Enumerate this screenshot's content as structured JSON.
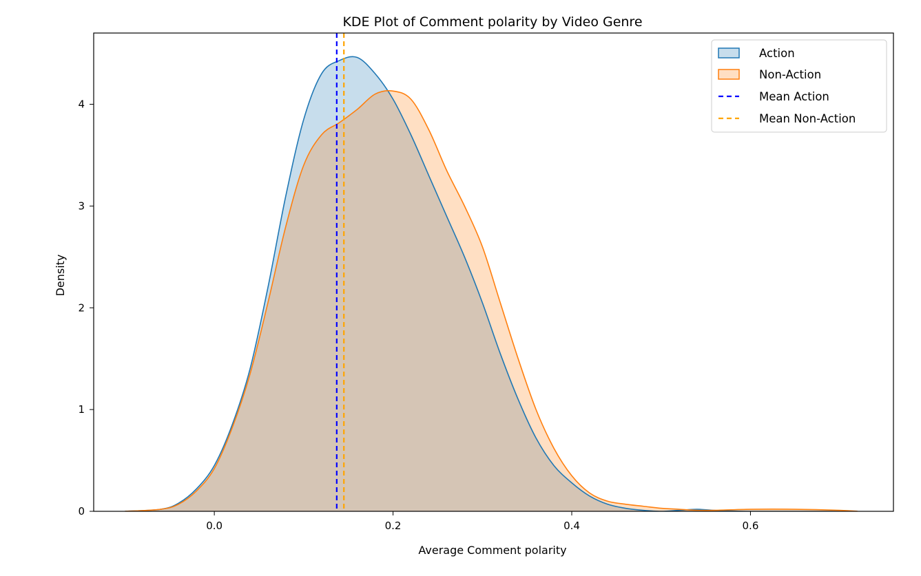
{
  "chart_data": {
    "type": "area",
    "title": "KDE Plot of Comment polarity by Video Genre",
    "xlabel": "Average Comment polarity",
    "ylabel": "Density",
    "xlim": [
      -0.135,
      0.76
    ],
    "ylim": [
      0,
      4.7
    ],
    "xticks": [
      0.0,
      0.2,
      0.4,
      0.6
    ],
    "xtick_labels": [
      "0.0",
      "0.2",
      "0.4",
      "0.6"
    ],
    "yticks": [
      0,
      1,
      2,
      3,
      4
    ],
    "ytick_labels": [
      "0",
      "1",
      "2",
      "3",
      "4"
    ],
    "grid": false,
    "legend_position": "top-right",
    "series": [
      {
        "name": "Action",
        "kind": "kde",
        "color": "#1f77b4",
        "x": [
          -0.1,
          -0.06,
          -0.04,
          -0.02,
          0.0,
          0.02,
          0.04,
          0.06,
          0.08,
          0.1,
          0.12,
          0.14,
          0.16,
          0.18,
          0.2,
          0.22,
          0.24,
          0.26,
          0.28,
          0.3,
          0.32,
          0.34,
          0.36,
          0.38,
          0.4,
          0.42,
          0.44,
          0.46,
          0.48,
          0.5,
          0.52,
          0.54,
          0.56,
          0.6,
          0.7
        ],
        "y": [
          0.0,
          0.02,
          0.08,
          0.22,
          0.45,
          0.85,
          1.4,
          2.2,
          3.1,
          3.85,
          4.3,
          4.43,
          4.46,
          4.3,
          4.05,
          3.7,
          3.3,
          2.9,
          2.5,
          2.05,
          1.55,
          1.1,
          0.72,
          0.45,
          0.28,
          0.15,
          0.07,
          0.03,
          0.01,
          0.0,
          0.01,
          0.02,
          0.01,
          0.0,
          0.0
        ]
      },
      {
        "name": "Non-Action",
        "kind": "kde",
        "color": "#ff7f0e",
        "x": [
          -0.1,
          -0.06,
          -0.04,
          -0.02,
          0.0,
          0.02,
          0.04,
          0.06,
          0.08,
          0.1,
          0.12,
          0.14,
          0.16,
          0.18,
          0.2,
          0.22,
          0.24,
          0.26,
          0.28,
          0.3,
          0.32,
          0.34,
          0.36,
          0.38,
          0.4,
          0.42,
          0.44,
          0.46,
          0.48,
          0.5,
          0.52,
          0.54,
          0.56,
          0.6,
          0.65,
          0.7,
          0.72
        ],
        "y": [
          0.0,
          0.02,
          0.07,
          0.2,
          0.42,
          0.82,
          1.35,
          2.05,
          2.8,
          3.4,
          3.7,
          3.82,
          3.95,
          4.1,
          4.13,
          4.05,
          3.75,
          3.35,
          3.0,
          2.6,
          2.05,
          1.5,
          1.0,
          0.62,
          0.35,
          0.18,
          0.1,
          0.07,
          0.05,
          0.03,
          0.02,
          0.01,
          0.01,
          0.02,
          0.02,
          0.01,
          0.0
        ]
      }
    ],
    "mean_lines": [
      {
        "name": "Mean Action",
        "x": 0.137,
        "color": "#0000ff"
      },
      {
        "name": "Mean Non-Action",
        "x": 0.145,
        "color": "#ffa500"
      }
    ]
  }
}
